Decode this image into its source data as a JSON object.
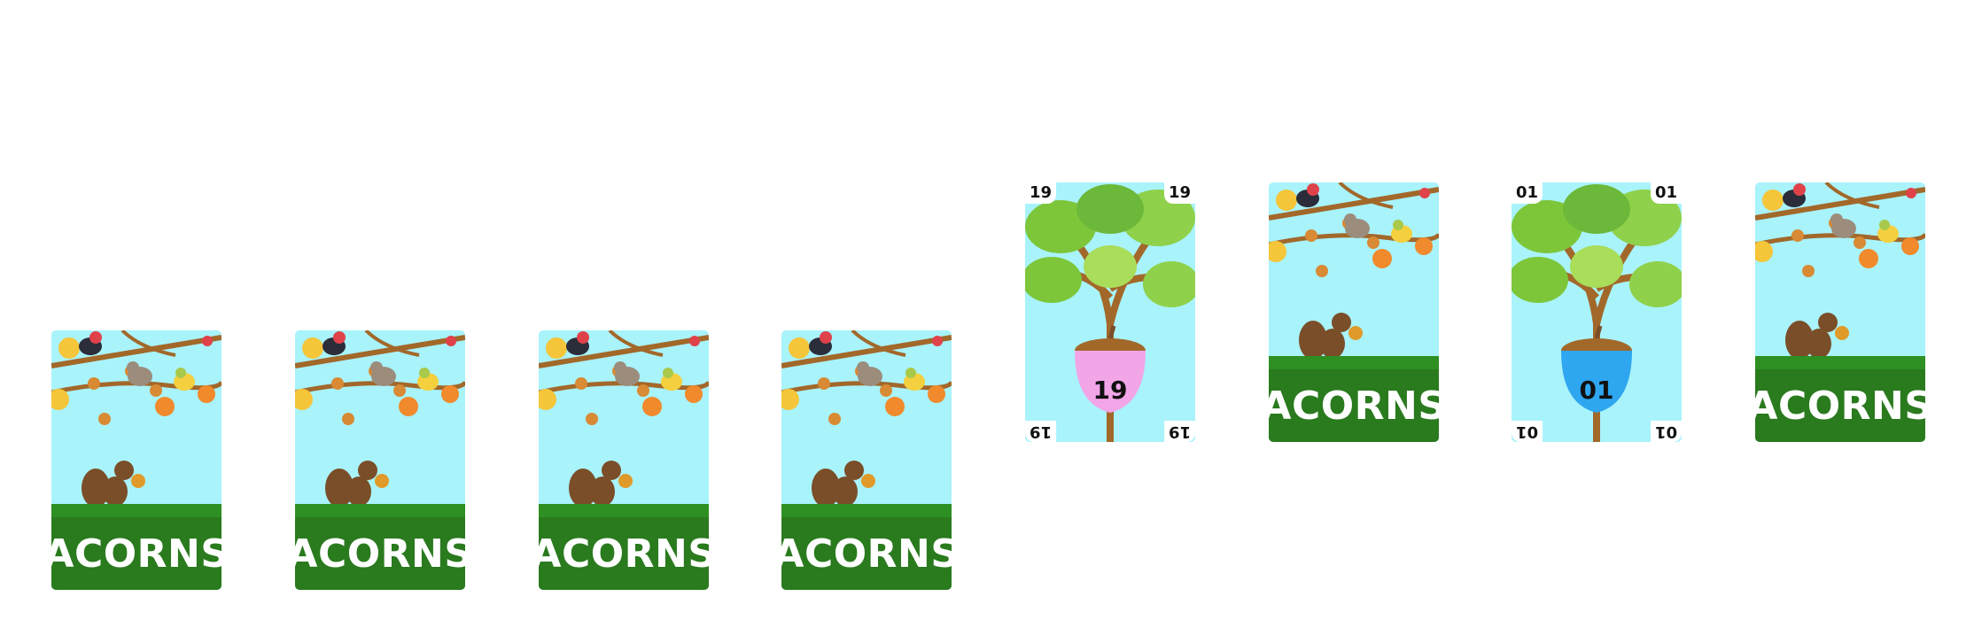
{
  "tableau": {
    "cards": [
      {
        "face": "back",
        "back_label": "ACORNS"
      },
      {
        "face": "back",
        "back_label": "ACORNS"
      },
      {
        "face": "back",
        "back_label": "ACORNS"
      },
      {
        "face": "back",
        "back_label": "ACORNS"
      },
      {
        "face": "up",
        "value": "19",
        "acorn_color": "#f2a6e8"
      },
      {
        "face": "back",
        "back_label": "ACORNS"
      },
      {
        "face": "up",
        "value": "01",
        "acorn_color": "#2ea6f0"
      },
      {
        "face": "back",
        "back_label": "ACORNS"
      }
    ]
  },
  "colors": {
    "sky": "#a9f3fb",
    "grass": "#2a7a1e",
    "branch": "#a2682a",
    "leaf_green": "#7dc63a"
  }
}
